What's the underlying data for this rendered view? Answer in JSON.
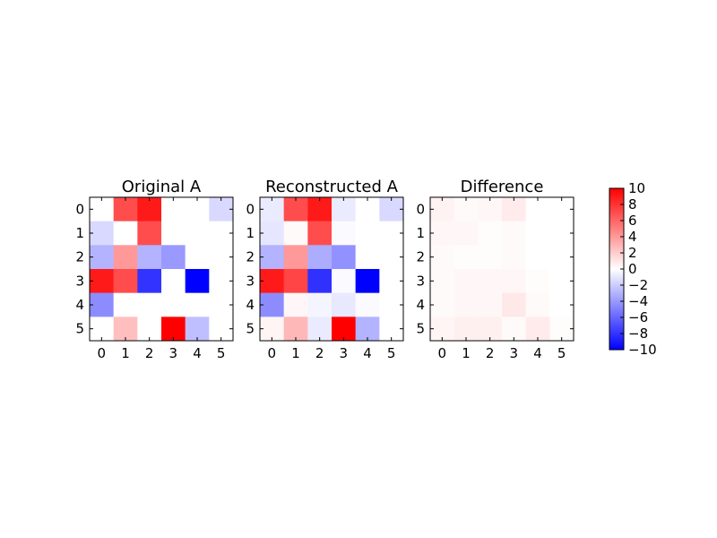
{
  "chart_data": [
    {
      "type": "heatmap",
      "title": "Original A",
      "x_ticks": [
        "0",
        "1",
        "2",
        "3",
        "4",
        "5"
      ],
      "y_ticks": [
        "0",
        "1",
        "2",
        "3",
        "4",
        "5"
      ],
      "values": [
        [
          0,
          7,
          9,
          0,
          0,
          -1.5
        ],
        [
          -1.5,
          0,
          7,
          0,
          0,
          0
        ],
        [
          -3,
          4,
          -3,
          -4,
          0,
          0
        ],
        [
          9,
          7,
          -8,
          0,
          -10,
          0
        ],
        [
          -4.5,
          0,
          0,
          0,
          0,
          0
        ],
        [
          0,
          2.5,
          0,
          10,
          -2.5,
          0
        ]
      ]
    },
    {
      "type": "heatmap",
      "title": "Reconstructed A",
      "x_ticks": [
        "0",
        "1",
        "2",
        "3",
        "4",
        "5"
      ],
      "y_ticks": [
        "0",
        "1",
        "2",
        "3",
        "4",
        "5"
      ],
      "values": [
        [
          -0.8,
          7,
          9,
          -0.8,
          0,
          -1.5
        ],
        [
          -1,
          0.2,
          7,
          -0.2,
          0,
          0
        ],
        [
          -3,
          4,
          -3.2,
          -4.3,
          0,
          0
        ],
        [
          9,
          7.3,
          -8.1,
          -0.2,
          -10,
          0
        ],
        [
          -4.5,
          0.3,
          -0.4,
          -0.9,
          -0.2,
          0
        ],
        [
          0.4,
          2.8,
          -0.8,
          10,
          -3,
          0
        ]
      ]
    },
    {
      "type": "heatmap",
      "title": "Difference",
      "x_ticks": [
        "0",
        "1",
        "2",
        "3",
        "4",
        "5"
      ],
      "y_ticks": [
        "0",
        "1",
        "2",
        "3",
        "4",
        "5"
      ],
      "values": [
        [
          0.5,
          0.2,
          0.3,
          0.8,
          0,
          0
        ],
        [
          0.3,
          0.3,
          0.1,
          0.2,
          0,
          0
        ],
        [
          0.2,
          0.1,
          0.1,
          0.2,
          0,
          0
        ],
        [
          0.2,
          0.3,
          0.3,
          0.3,
          0.1,
          0
        ],
        [
          0.2,
          0.3,
          0.3,
          0.9,
          0.2,
          0
        ],
        [
          0.4,
          0.6,
          0.6,
          0.2,
          0.8,
          0.1
        ]
      ]
    }
  ],
  "colorbar": {
    "colormap": "bwr",
    "range": [
      -10,
      10
    ],
    "ticks": [
      "10",
      "8",
      "6",
      "4",
      "2",
      "0",
      "−2",
      "−4",
      "−6",
      "−8",
      "−10"
    ],
    "colors": {
      "low": "#0000ff",
      "mid": "#ffffff",
      "high": "#ff0000"
    }
  }
}
